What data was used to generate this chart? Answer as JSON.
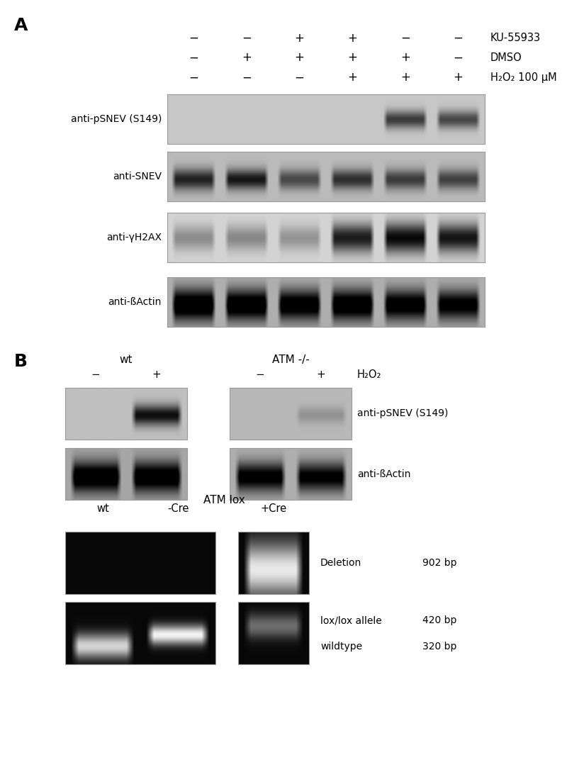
{
  "panel_A_label": "A",
  "panel_B_label": "B",
  "background_color": "#ffffff",
  "panelA": {
    "treatment_row1_label": "KU-55933",
    "treatment_row2_label": "DMSO",
    "treatment_row3_label": "H₂O₂ 100 μM",
    "treatment_row1_signs": [
      "−",
      "−",
      "+",
      "+",
      "−",
      "−"
    ],
    "treatment_row2_signs": [
      "−",
      "+",
      "+",
      "+",
      "+",
      "−"
    ],
    "treatment_row3_signs": [
      "−",
      "−",
      "−",
      "+",
      "+",
      "+"
    ],
    "blot_labels": [
      "anti-pSNEV (S149)",
      "anti-SNEV",
      "anti-γH2AX",
      "anti-ßActin"
    ]
  },
  "panelB_top": {
    "wt_label": "wt",
    "atm_label": "ATM -/-",
    "h2o2_label": "H₂O₂",
    "signs_wt": [
      "−",
      "+"
    ],
    "signs_atm": [
      "−",
      "+"
    ],
    "blot_labels": [
      "anti-pSNEV (S149)",
      "anti-ßActin"
    ]
  },
  "panelB_bottom": {
    "title": "ATM lox",
    "col_labels": [
      "wt",
      "-Cre",
      "+Cre"
    ],
    "row_labels": [
      "Deletion",
      "lox/lox allele",
      "wildtype"
    ],
    "bp_labels": [
      "902 bp",
      "420 bp",
      "320 bp"
    ]
  }
}
